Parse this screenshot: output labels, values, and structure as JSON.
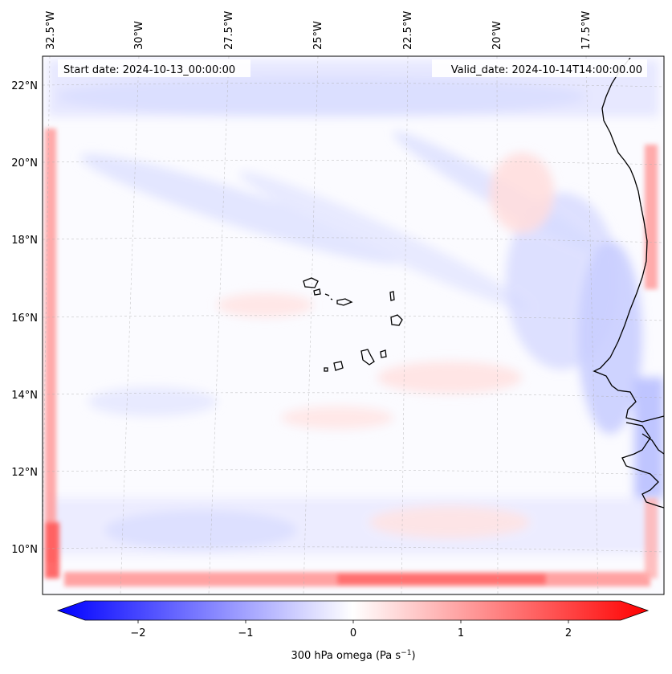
{
  "map": {
    "start_date_label": "Start date: 2024-10-13_00:00:00",
    "valid_date_label": "Valid_date: 2024-10-14T14:00:00.00",
    "lon_labels": [
      "32.5°W",
      "30°W",
      "27.5°W",
      "25°W",
      "22.5°W",
      "20°W",
      "17.5°W"
    ],
    "lat_labels": [
      "22°N",
      "20°N",
      "18°N",
      "16°N",
      "14°N",
      "12°N",
      "10°N"
    ],
    "colors": {
      "negative": "#0000ff",
      "neutral": "#ffffff",
      "positive": "#ff0000",
      "coastline": "#000000"
    }
  },
  "colorbar": {
    "title": "300 hPa omega (Pa s",
    "title_sup": "−1",
    "title_end": ")",
    "min": -2.7,
    "max": 2.7,
    "ticks": [
      -2,
      -1,
      0,
      1,
      2
    ],
    "tick_labels": [
      "−2",
      "−1",
      "0",
      "1",
      "2"
    ]
  }
}
